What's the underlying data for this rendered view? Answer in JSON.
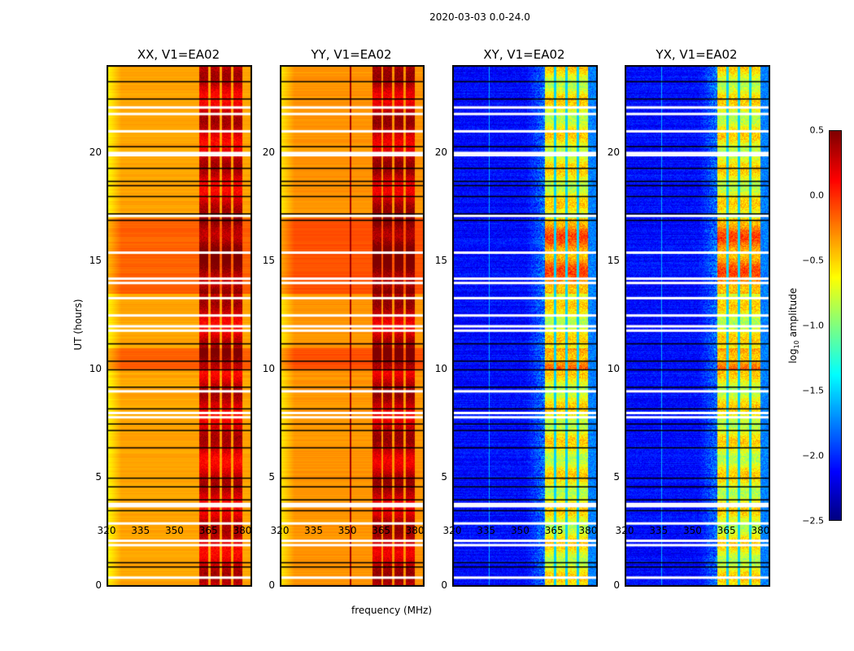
{
  "chart_data": {
    "type": "heatmap",
    "title": "2020-03-03 0.0-24.0",
    "xlabel": "frequency (MHz)",
    "ylabel": "UT (hours)",
    "xlim": [
      320,
      383.6
    ],
    "ylim": [
      0,
      24
    ],
    "xticks": [
      320,
      335,
      350,
      365,
      380
    ],
    "yticks": [
      0,
      5,
      10,
      15,
      20
    ],
    "colormap": "jet",
    "colorbar": {
      "label_main": "log",
      "label_sub": "10",
      "label_rest": " amplitude",
      "range": [
        -2.5,
        0.5
      ],
      "ticks": [
        "0.5",
        "0.0",
        "−0.5",
        "−1.0",
        "−1.5",
        "−2.0",
        "−2.5"
      ]
    },
    "subbands_mhz": [
      [
        360.5,
        364.5
      ],
      [
        365.5,
        369.5
      ],
      [
        370.5,
        374.5
      ],
      [
        375.5,
        379.5
      ]
    ],
    "flagged_white_hours": [
      0.4,
      1.9,
      2.1,
      2.9,
      3.7,
      3.8,
      7.8,
      8.0,
      9.0,
      11.8,
      12.0,
      12.5,
      13.3,
      14.0,
      14.2,
      15.4,
      17.1,
      19.9,
      20.0,
      21.0,
      21.8,
      22.1
    ],
    "flagged_black_hours": [
      0.9,
      1.1,
      3.5,
      4.0,
      4.6,
      5.0,
      6.4,
      7.2,
      7.5,
      8.2,
      9.2,
      10.0,
      10.4,
      11.2,
      16.9,
      17.2,
      18.0,
      18.5,
      18.7,
      19.3,
      20.3,
      22.5,
      23.3
    ],
    "panels": [
      {
        "title": "XX, V1=EA02",
        "kind": "parallel",
        "base_log_amp": -0.4,
        "band_log_amp": 0.25,
        "rfi_line_mhz": null
      },
      {
        "title": "YY, V1=EA02",
        "kind": "parallel",
        "base_log_amp": -0.35,
        "band_log_amp": 0.3,
        "rfi_line_mhz": 351
      },
      {
        "title": "XY, V1=EA02",
        "kind": "cross",
        "base_log_amp": -2.3,
        "band_log_amp": -0.4,
        "rfi_line_mhz": 335.8
      },
      {
        "title": "YX, V1=EA02",
        "kind": "cross",
        "base_log_amp": -2.3,
        "band_log_amp": -0.4,
        "rfi_line_mhz": 335.8
      }
    ]
  }
}
